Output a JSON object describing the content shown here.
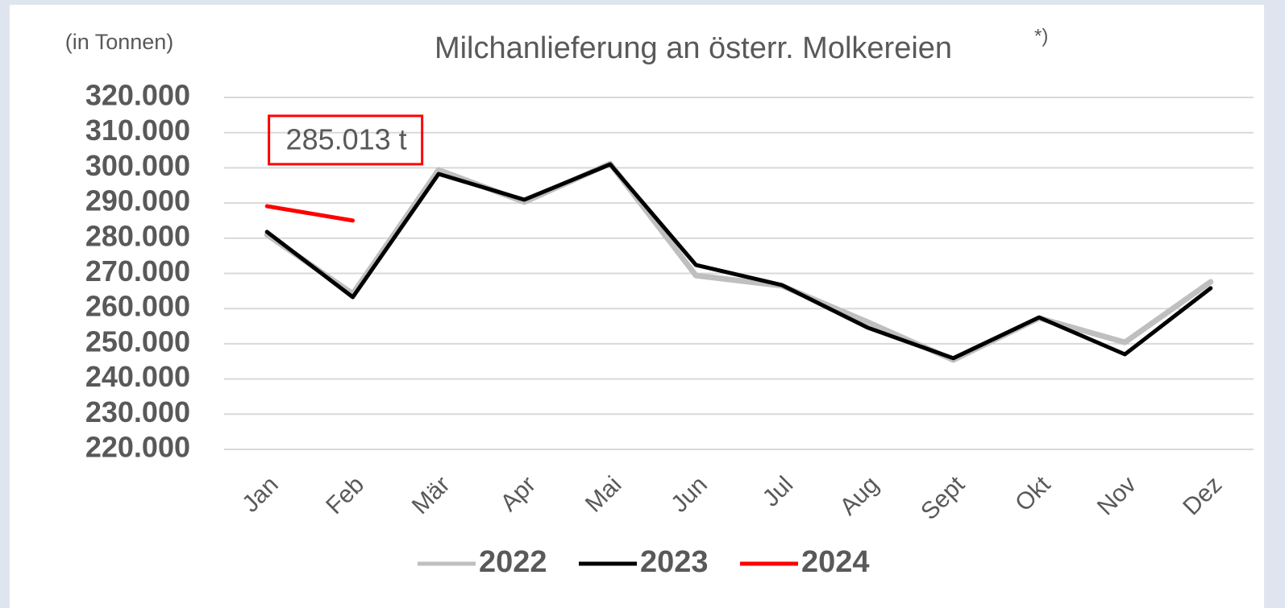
{
  "chart_data": {
    "type": "line",
    "title": "Milchanlieferung an österr. Molkereien",
    "title_note": "*)",
    "y_label": "(in Tonnen)",
    "categories": [
      "Jan",
      "Feb",
      "Mär",
      "Apr",
      "Mai",
      "Jun",
      "Jul",
      "Aug",
      "Sept",
      "Okt",
      "Nov",
      "Dez"
    ],
    "series": [
      {
        "name": "2022",
        "color": "#bfbfbf",
        "values": [
          281000,
          264200,
          299400,
          290300,
          301200,
          269400,
          266500,
          256200,
          245400,
          257300,
          250400,
          267600
        ]
      },
      {
        "name": "2023",
        "color": "#000000",
        "values": [
          281800,
          263250,
          298260,
          290940,
          301000,
          272400,
          266700,
          254600,
          245900,
          257500,
          247000,
          265800
        ]
      },
      {
        "name": "2024",
        "color": "#ff0000",
        "values": [
          289100,
          285013,
          null,
          null,
          null,
          null,
          null,
          null,
          null,
          null,
          null,
          null
        ],
        "value_labels": [
          null,
          "285.013 t",
          null,
          null,
          null,
          null,
          null,
          null,
          null,
          null,
          null,
          null
        ]
      }
    ],
    "ylim": [
      220000,
      320000
    ],
    "yticks": [
      {
        "value": 220000,
        "label": "220.000"
      },
      {
        "value": 230000,
        "label": "230.000"
      },
      {
        "value": 240000,
        "label": "240.000"
      },
      {
        "value": 250000,
        "label": "250.000"
      },
      {
        "value": 260000,
        "label": "260.000"
      },
      {
        "value": 270000,
        "label": "270.000"
      },
      {
        "value": 280000,
        "label": "280.000"
      },
      {
        "value": 290000,
        "label": "290.000"
      },
      {
        "value": 300000,
        "label": "300.000"
      },
      {
        "value": 310000,
        "label": "310.000"
      },
      {
        "value": 320000,
        "label": "320.000"
      }
    ],
    "grid": true,
    "legend": "bottom"
  }
}
